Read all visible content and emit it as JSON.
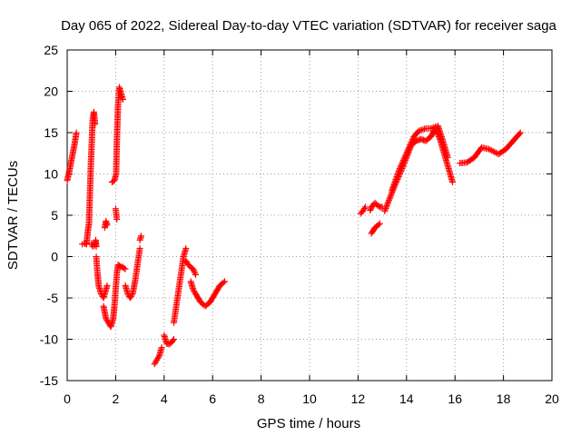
{
  "chart_data": {
    "type": "scatter",
    "title": "Day 065 of 2022, Sidereal Day-to-day VTEC variation (SDTVAR) for receiver saga",
    "xlabel": "GPS time / hours",
    "ylabel": "SDTVAR / TECUs",
    "xlim": [
      0,
      20
    ],
    "ylim": [
      -15,
      25
    ],
    "xticks": [
      "0",
      "2",
      "4",
      "6",
      "8",
      "10",
      "12",
      "14",
      "16",
      "18",
      "20"
    ],
    "yticks": [
      "-15",
      "-10",
      "-5",
      "0",
      "5",
      "10",
      "15",
      "20",
      "25"
    ],
    "grid": true,
    "marker": "+",
    "series_color": "#ff0000",
    "segments": [
      {
        "name": "seg-01",
        "x": [
          0.0,
          0.1,
          0.2,
          0.3,
          0.38
        ],
        "y": [
          9.2,
          10.5,
          12.0,
          13.5,
          15.0
        ]
      },
      {
        "name": "seg-02",
        "x": [
          0.62,
          0.7,
          0.8,
          0.85,
          0.9,
          0.97,
          1.05,
          1.1,
          1.15
        ],
        "y": [
          1.5,
          1.6,
          1.5,
          3.0,
          4.0,
          10.5,
          16.5,
          17.5,
          16.0
        ]
      },
      {
        "name": "seg-03",
        "x": [
          1.0,
          1.05,
          1.12,
          1.18,
          1.2
        ],
        "y": [
          1.6,
          1.2,
          1.3,
          2.0,
          1.2
        ]
      },
      {
        "name": "seg-04",
        "x": [
          1.2,
          1.25,
          1.3,
          1.4,
          1.5,
          1.6,
          1.65
        ],
        "y": [
          0.0,
          -2.0,
          -3.5,
          -4.5,
          -5.0,
          -4.0,
          -3.5
        ]
      },
      {
        "name": "seg-05",
        "x": [
          1.5,
          1.6,
          1.7,
          1.8,
          1.9,
          1.95,
          2.0,
          2.05,
          2.1
        ],
        "y": [
          -6.0,
          -7.5,
          -8.0,
          -8.5,
          -7.5,
          -6.0,
          -4.0,
          -2.0,
          -1.0
        ]
      },
      {
        "name": "seg-06",
        "x": [
          1.55,
          1.6,
          1.65
        ],
        "y": [
          3.5,
          4.3,
          3.8
        ]
      },
      {
        "name": "seg-07",
        "x": [
          1.85,
          1.95,
          2.02,
          2.05,
          2.1,
          2.15,
          2.2,
          2.25,
          2.3
        ],
        "y": [
          9.0,
          9.2,
          10.0,
          14.0,
          18.5,
          20.5,
          20.0,
          19.5,
          19.0
        ]
      },
      {
        "name": "seg-08",
        "x": [
          2.0,
          2.05
        ],
        "y": [
          5.8,
          4.5
        ]
      },
      {
        "name": "seg-09",
        "x": [
          2.1,
          2.2,
          2.3,
          2.4
        ],
        "y": [
          -1.0,
          -1.2,
          -1.3,
          -1.5
        ]
      },
      {
        "name": "seg-10",
        "x": [
          2.4,
          2.5,
          2.6,
          2.7,
          2.8,
          2.9,
          3.0
        ],
        "y": [
          -3.5,
          -4.5,
          -5.0,
          -4.5,
          -3.0,
          -1.0,
          1.0
        ]
      },
      {
        "name": "seg-11",
        "x": [
          3.0,
          3.05
        ],
        "y": [
          2.0,
          2.5
        ]
      },
      {
        "name": "seg-12",
        "x": [
          3.6,
          3.7,
          3.8,
          3.9
        ],
        "y": [
          -13.0,
          -12.5,
          -12.0,
          -11.0
        ]
      },
      {
        "name": "seg-13",
        "x": [
          4.0,
          4.1,
          4.2,
          4.3,
          4.4
        ],
        "y": [
          -9.5,
          -10.5,
          -10.6,
          -10.4,
          -10.0
        ]
      },
      {
        "name": "seg-14",
        "x": [
          4.4,
          4.5,
          4.6,
          4.7,
          4.8,
          4.9
        ],
        "y": [
          -8.0,
          -6.0,
          -4.0,
          -2.0,
          0.0,
          1.0
        ]
      },
      {
        "name": "seg-15",
        "x": [
          4.9,
          5.0,
          5.1,
          5.2,
          5.3
        ],
        "y": [
          -0.5,
          -1.0,
          -1.3,
          -1.5,
          -2.2
        ]
      },
      {
        "name": "seg-16",
        "x": [
          5.1,
          5.2,
          5.3,
          5.5,
          5.7,
          5.9,
          6.1,
          6.3,
          6.5
        ],
        "y": [
          -3.0,
          -4.0,
          -4.5,
          -5.5,
          -6.0,
          -5.5,
          -4.5,
          -3.5,
          -3.0
        ]
      },
      {
        "name": "seg-17",
        "x": [
          12.1,
          12.2,
          12.3
        ],
        "y": [
          5.2,
          5.5,
          6.0
        ]
      },
      {
        "name": "seg-18",
        "x": [
          12.5,
          12.6,
          12.7,
          12.8,
          12.9,
          13.0
        ],
        "y": [
          5.6,
          6.2,
          6.5,
          6.2,
          6.0,
          6.0
        ]
      },
      {
        "name": "seg-19",
        "x": [
          12.55,
          12.7,
          12.9
        ],
        "y": [
          2.8,
          3.5,
          4.0
        ]
      },
      {
        "name": "seg-20",
        "x": [
          13.1,
          13.3,
          13.5,
          13.8,
          14.0,
          14.2,
          14.4,
          14.6,
          14.8,
          15.0,
          15.2,
          15.4,
          15.6,
          15.8,
          15.9
        ],
        "y": [
          5.5,
          7.0,
          8.5,
          10.5,
          12.0,
          13.5,
          14.0,
          14.2,
          14.0,
          14.5,
          15.5,
          14.0,
          12.0,
          10.0,
          9.0
        ]
      },
      {
        "name": "seg-21",
        "x": [
          13.4,
          13.7,
          14.0,
          14.3,
          14.5,
          14.8,
          15.0,
          15.3,
          15.5,
          15.7
        ],
        "y": [
          8.0,
          10.5,
          12.5,
          14.5,
          15.2,
          15.5,
          15.5,
          15.8,
          14.0,
          12.0
        ]
      },
      {
        "name": "seg-22",
        "x": [
          16.2,
          16.5,
          16.8,
          17.1,
          17.4,
          17.8,
          18.1,
          18.4,
          18.7
        ],
        "y": [
          11.3,
          11.4,
          12.0,
          13.2,
          13.0,
          12.4,
          13.0,
          14.0,
          15.0
        ]
      }
    ]
  }
}
